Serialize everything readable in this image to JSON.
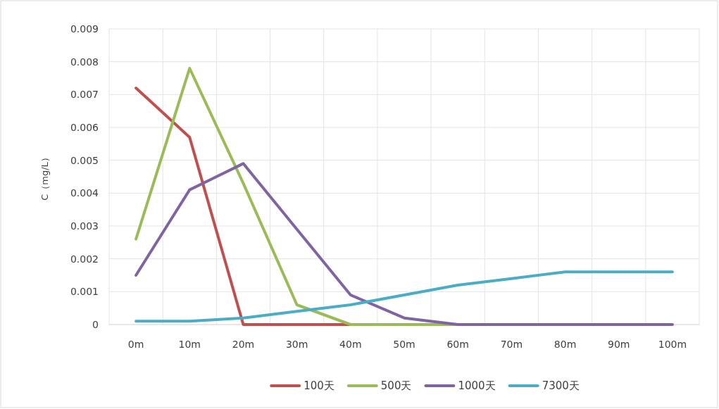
{
  "chart_data": {
    "type": "line",
    "ylabel": "C（mg/L）",
    "categories": [
      "0m",
      "10m",
      "20m",
      "30m",
      "40m",
      "50m",
      "60m",
      "70m",
      "80m",
      "90m",
      "100m"
    ],
    "series": [
      {
        "name": "100天",
        "color": "#c0504d",
        "values": [
          0.0072,
          0.0057,
          0,
          0,
          0,
          null,
          null,
          null,
          null,
          null,
          null
        ]
      },
      {
        "name": "500天",
        "color": "#9bbb59",
        "values": [
          0.0026,
          0.0078,
          0.0043,
          0.0006,
          0,
          0,
          0,
          0,
          null,
          null,
          null
        ]
      },
      {
        "name": "1000天",
        "color": "#8064a2",
        "values": [
          0.0015,
          0.0041,
          0.0049,
          0.0029,
          0.0009,
          0.0002,
          0,
          0,
          0,
          0,
          0
        ]
      },
      {
        "name": "7300天",
        "color": "#4bacc6",
        "values": [
          0.0001,
          0.0001,
          0.0002,
          0.0004,
          0.0006,
          0.0009,
          0.0012,
          0.0014,
          0.0016,
          0.0016,
          0.0016
        ]
      }
    ],
    "ylim": [
      0,
      0.009
    ],
    "yticks": [
      0,
      0.001,
      0.002,
      0.003,
      0.004,
      0.005,
      0.006,
      0.007,
      0.008,
      0.009
    ],
    "grid": true,
    "legend": "bottom",
    "marker": "none",
    "line_style": "solid"
  }
}
